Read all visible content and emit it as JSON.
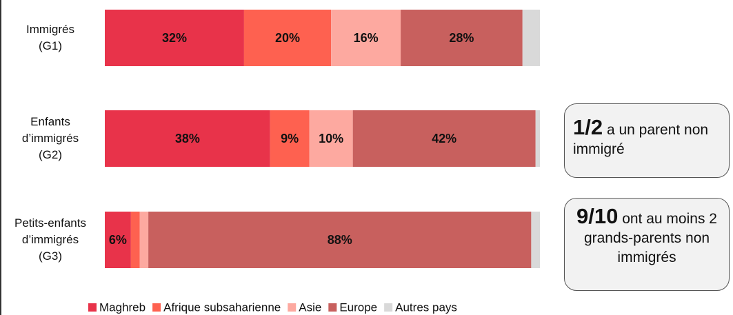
{
  "chart_data": {
    "type": "stacked_hbar",
    "categories": [
      "Immigrés\n(G1)",
      "Enfants\nd’immigrés\n(G2)",
      "Petits-enfants\nd’immigrés\n(G3)"
    ],
    "xlim": [
      0,
      100
    ],
    "series": [
      {
        "name": "Maghreb",
        "color": "#e8334a",
        "values": [
          32,
          38,
          6
        ],
        "value_labels": [
          "32%",
          "38%",
          "6%"
        ]
      },
      {
        "name": "Afrique subsaharienne",
        "color": "#fe6150",
        "values": [
          20,
          9,
          2
        ],
        "value_labels": [
          "20%",
          "9%",
          null
        ]
      },
      {
        "name": "Asie",
        "color": "#fda9a0",
        "values": [
          16,
          10,
          2
        ],
        "value_labels": [
          "16%",
          "10%",
          null
        ]
      },
      {
        "name": "Europe",
        "color": "#c8605e",
        "values": [
          28,
          42,
          88
        ],
        "value_labels": [
          "28%",
          "42%",
          "88%"
        ]
      },
      {
        "name": "Autres pays",
        "color": "#d9d9d9",
        "values": [
          4,
          1,
          2
        ],
        "value_labels": [
          null,
          null,
          null
        ]
      }
    ],
    "annotations": [
      {
        "emphasis": "1/2",
        "text": "a un parent non immigré"
      },
      {
        "emphasis": "9/10",
        "text": "ont au moins 2 grands-parents non immigrés"
      }
    ]
  }
}
